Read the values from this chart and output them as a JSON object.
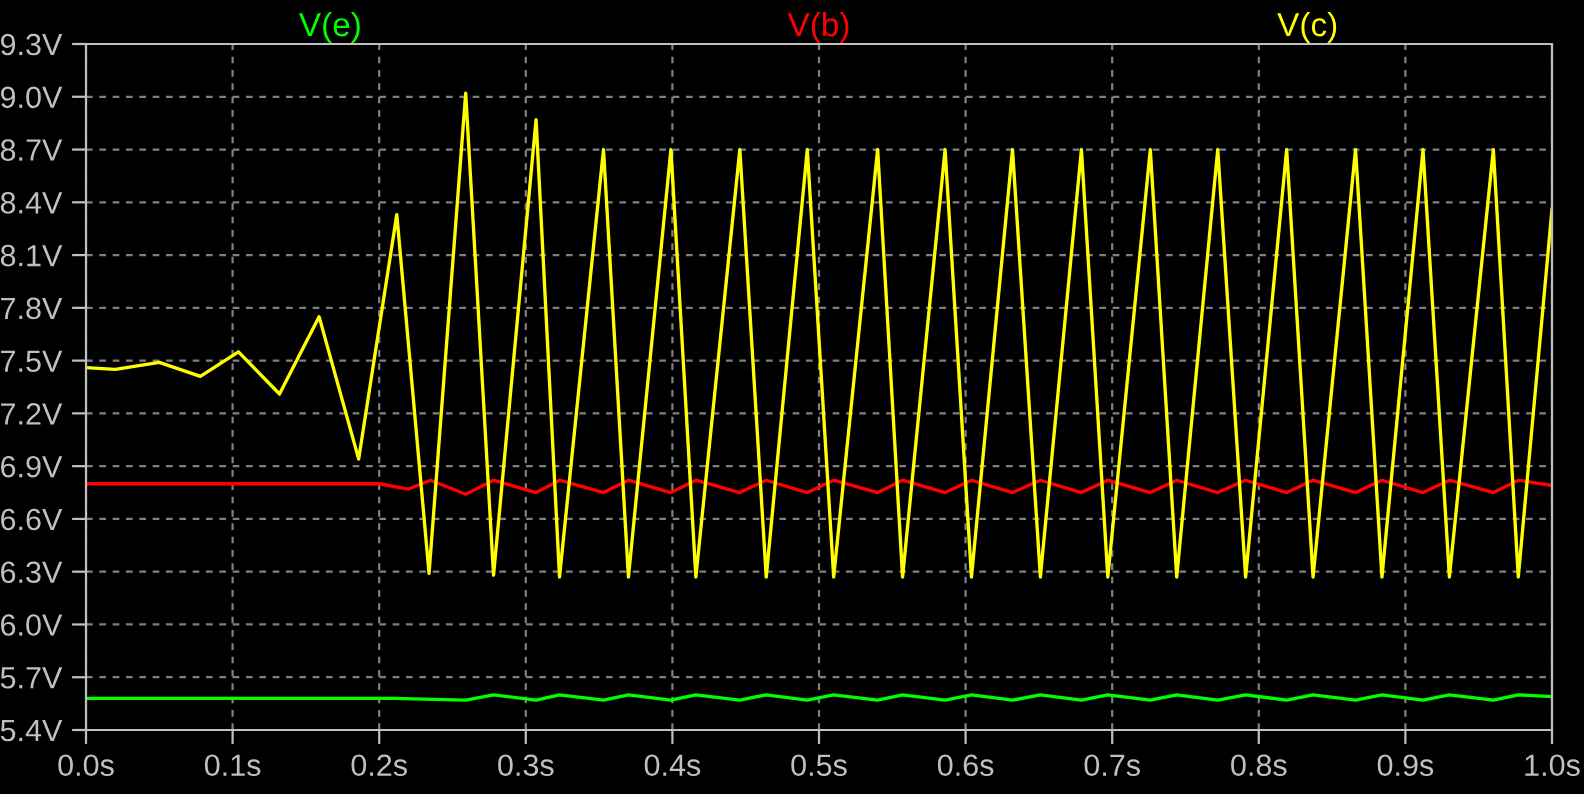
{
  "chart_data": {
    "type": "line",
    "xlim": [
      0.0,
      1.0
    ],
    "xticks": [
      {
        "value": 0.0,
        "label": "0.0s"
      },
      {
        "value": 0.1,
        "label": "0.1s"
      },
      {
        "value": 0.2,
        "label": "0.2s"
      },
      {
        "value": 0.3,
        "label": "0.3s"
      },
      {
        "value": 0.4,
        "label": "0.4s"
      },
      {
        "value": 0.5,
        "label": "0.5s"
      },
      {
        "value": 0.6,
        "label": "0.6s"
      },
      {
        "value": 0.7,
        "label": "0.7s"
      },
      {
        "value": 0.8,
        "label": "0.8s"
      },
      {
        "value": 0.9,
        "label": "0.9s"
      },
      {
        "value": 1.0,
        "label": "1.0s"
      }
    ],
    "ylim": [
      5.4,
      9.3
    ],
    "yticks": [
      {
        "value": 5.4,
        "label": "5.4V"
      },
      {
        "value": 5.7,
        "label": "5.7V"
      },
      {
        "value": 6.0,
        "label": "6.0V"
      },
      {
        "value": 6.3,
        "label": "6.3V"
      },
      {
        "value": 6.6,
        "label": "6.6V"
      },
      {
        "value": 6.9,
        "label": "6.9V"
      },
      {
        "value": 7.2,
        "label": "7.2V"
      },
      {
        "value": 7.5,
        "label": "7.5V"
      },
      {
        "value": 7.8,
        "label": "7.8V"
      },
      {
        "value": 8.1,
        "label": "8.1V"
      },
      {
        "value": 8.4,
        "label": "8.4V"
      },
      {
        "value": 8.7,
        "label": "8.7V"
      },
      {
        "value": 9.0,
        "label": "9.0V"
      },
      {
        "value": 9.3,
        "label": "9.3V"
      }
    ],
    "grid": true,
    "legend": "top",
    "marker": "none",
    "line_style": "solid",
    "series": [
      {
        "name": "V(e)",
        "color": "#00ff00",
        "x": [
          0.0,
          0.21,
          0.259,
          0.278,
          0.307,
          0.323,
          0.353,
          0.37,
          0.399,
          0.416,
          0.446,
          0.464,
          0.492,
          0.51,
          0.54,
          0.557,
          0.586,
          0.604,
          0.632,
          0.651,
          0.679,
          0.697,
          0.726,
          0.744,
          0.772,
          0.791,
          0.819,
          0.837,
          0.866,
          0.884,
          0.912,
          0.93,
          0.96,
          0.977,
          1.0
        ],
        "values": [
          5.58,
          5.58,
          5.57,
          5.6,
          5.57,
          5.6,
          5.57,
          5.6,
          5.57,
          5.6,
          5.57,
          5.6,
          5.57,
          5.6,
          5.57,
          5.6,
          5.57,
          5.6,
          5.57,
          5.6,
          5.57,
          5.6,
          5.57,
          5.6,
          5.57,
          5.6,
          5.57,
          5.6,
          5.57,
          5.6,
          5.57,
          5.6,
          5.57,
          5.6,
          5.59
        ]
      },
      {
        "name": "V(b)",
        "color": "#ff0000",
        "x": [
          0.0,
          0.2,
          0.22,
          0.235,
          0.259,
          0.278,
          0.307,
          0.323,
          0.353,
          0.37,
          0.399,
          0.416,
          0.446,
          0.464,
          0.492,
          0.51,
          0.54,
          0.557,
          0.586,
          0.604,
          0.632,
          0.651,
          0.679,
          0.697,
          0.726,
          0.744,
          0.772,
          0.791,
          0.819,
          0.837,
          0.866,
          0.884,
          0.912,
          0.93,
          0.96,
          0.977,
          1.0
        ],
        "values": [
          6.8,
          6.8,
          6.77,
          6.82,
          6.74,
          6.82,
          6.75,
          6.82,
          6.75,
          6.82,
          6.75,
          6.82,
          6.75,
          6.82,
          6.75,
          6.82,
          6.75,
          6.82,
          6.75,
          6.82,
          6.75,
          6.82,
          6.75,
          6.82,
          6.75,
          6.82,
          6.75,
          6.82,
          6.75,
          6.82,
          6.75,
          6.82,
          6.75,
          6.82,
          6.75,
          6.82,
          6.79
        ]
      },
      {
        "name": "V(c)",
        "color": "#ffff00",
        "x": [
          0.0,
          0.02,
          0.05,
          0.078,
          0.104,
          0.132,
          0.159,
          0.186,
          0.212,
          0.234,
          0.259,
          0.278,
          0.307,
          0.323,
          0.353,
          0.37,
          0.399,
          0.416,
          0.446,
          0.464,
          0.492,
          0.51,
          0.54,
          0.557,
          0.586,
          0.604,
          0.632,
          0.651,
          0.679,
          0.697,
          0.726,
          0.744,
          0.772,
          0.791,
          0.819,
          0.837,
          0.866,
          0.884,
          0.912,
          0.93,
          0.96,
          0.977,
          1.0
        ],
        "values": [
          7.46,
          7.45,
          7.49,
          7.41,
          7.55,
          7.31,
          7.75,
          6.94,
          8.33,
          6.29,
          9.02,
          6.28,
          8.87,
          6.27,
          8.7,
          6.27,
          8.7,
          6.27,
          8.7,
          6.27,
          8.7,
          6.27,
          8.7,
          6.27,
          8.7,
          6.27,
          8.7,
          6.27,
          8.7,
          6.27,
          8.7,
          6.27,
          8.7,
          6.27,
          8.7,
          6.27,
          8.7,
          6.27,
          8.7,
          6.27,
          8.7,
          6.27,
          8.36
        ]
      }
    ]
  }
}
